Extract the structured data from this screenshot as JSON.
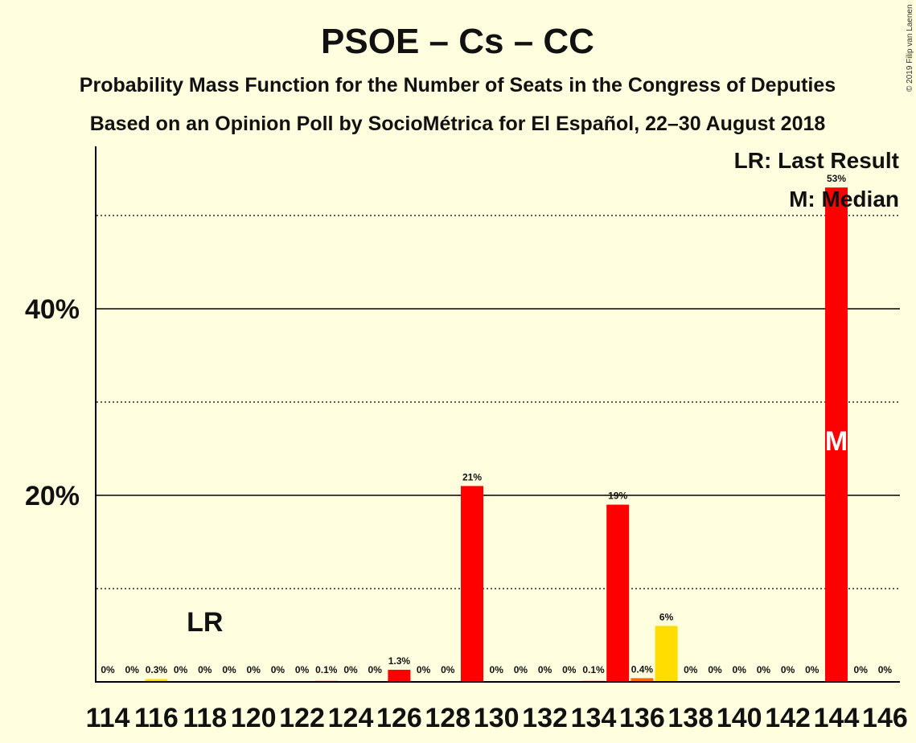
{
  "header": {
    "title": "PSOE – Cs – CC",
    "subtitle1": "Probability Mass Function for the Number of Seats in the Congress of Deputies",
    "subtitle2": "Based on an Opinion Poll by SocioMétrica for El Español, 22–30 August 2018",
    "copyright": "© 2019 Filip van Laenen"
  },
  "legend": {
    "lr": "LR: Last Result",
    "m": "M: Median"
  },
  "markers": {
    "lr_label": "LR",
    "lr_seat": 118,
    "median_label": "M",
    "median_seat": 144
  },
  "colors": {
    "bar_main": "#FF0000",
    "bar_small": "#FF6600",
    "bar_yellow": "#FFDD00",
    "background": "#FFFFE0"
  },
  "chart_data": {
    "type": "bar",
    "x": [
      114,
      115,
      116,
      117,
      118,
      119,
      120,
      121,
      122,
      123,
      124,
      125,
      126,
      127,
      128,
      129,
      130,
      131,
      132,
      133,
      134,
      135,
      136,
      137,
      138,
      139,
      140,
      141,
      142,
      143,
      144,
      145,
      146
    ],
    "values": [
      0,
      0,
      0.3,
      0,
      0,
      0,
      0,
      0,
      0,
      0.1,
      0,
      0,
      1.3,
      0,
      0,
      21,
      0,
      0,
      0,
      0,
      0.1,
      19,
      0.4,
      6,
      0,
      0,
      0,
      0,
      0,
      0,
      53,
      0,
      0
    ],
    "data_labels": [
      "0%",
      "0%",
      "0.3%",
      "0%",
      "0%",
      "0%",
      "0%",
      "0%",
      "0%",
      "0.1%",
      "0%",
      "0%",
      "1.3%",
      "0%",
      "0%",
      "21%",
      "0%",
      "0%",
      "0%",
      "0%",
      "0.1%",
      "19%",
      "0.4%",
      "6%",
      "0%",
      "0%",
      "0%",
      "0%",
      "0%",
      "0%",
      "53%",
      "0%",
      "0%"
    ],
    "bar_colors": [
      "red",
      "red",
      "yellow",
      "red",
      "red",
      "red",
      "red",
      "red",
      "red",
      "red",
      "red",
      "red",
      "red",
      "red",
      "red",
      "red",
      "red",
      "red",
      "red",
      "red",
      "red",
      "red",
      "orange",
      "yellow",
      "red",
      "red",
      "red",
      "red",
      "red",
      "red",
      "red",
      "red",
      "red"
    ],
    "x_tick_labels": [
      "114",
      "116",
      "118",
      "120",
      "122",
      "124",
      "126",
      "128",
      "130",
      "132",
      "134",
      "136",
      "138",
      "140",
      "142",
      "144",
      "146"
    ],
    "y_ticks": [
      {
        "value": 40,
        "label": "40%"
      },
      {
        "value": 20,
        "label": "20%"
      }
    ],
    "y_dotted_lines": [
      10,
      30,
      50
    ],
    "ylim": [
      0,
      57
    ]
  }
}
